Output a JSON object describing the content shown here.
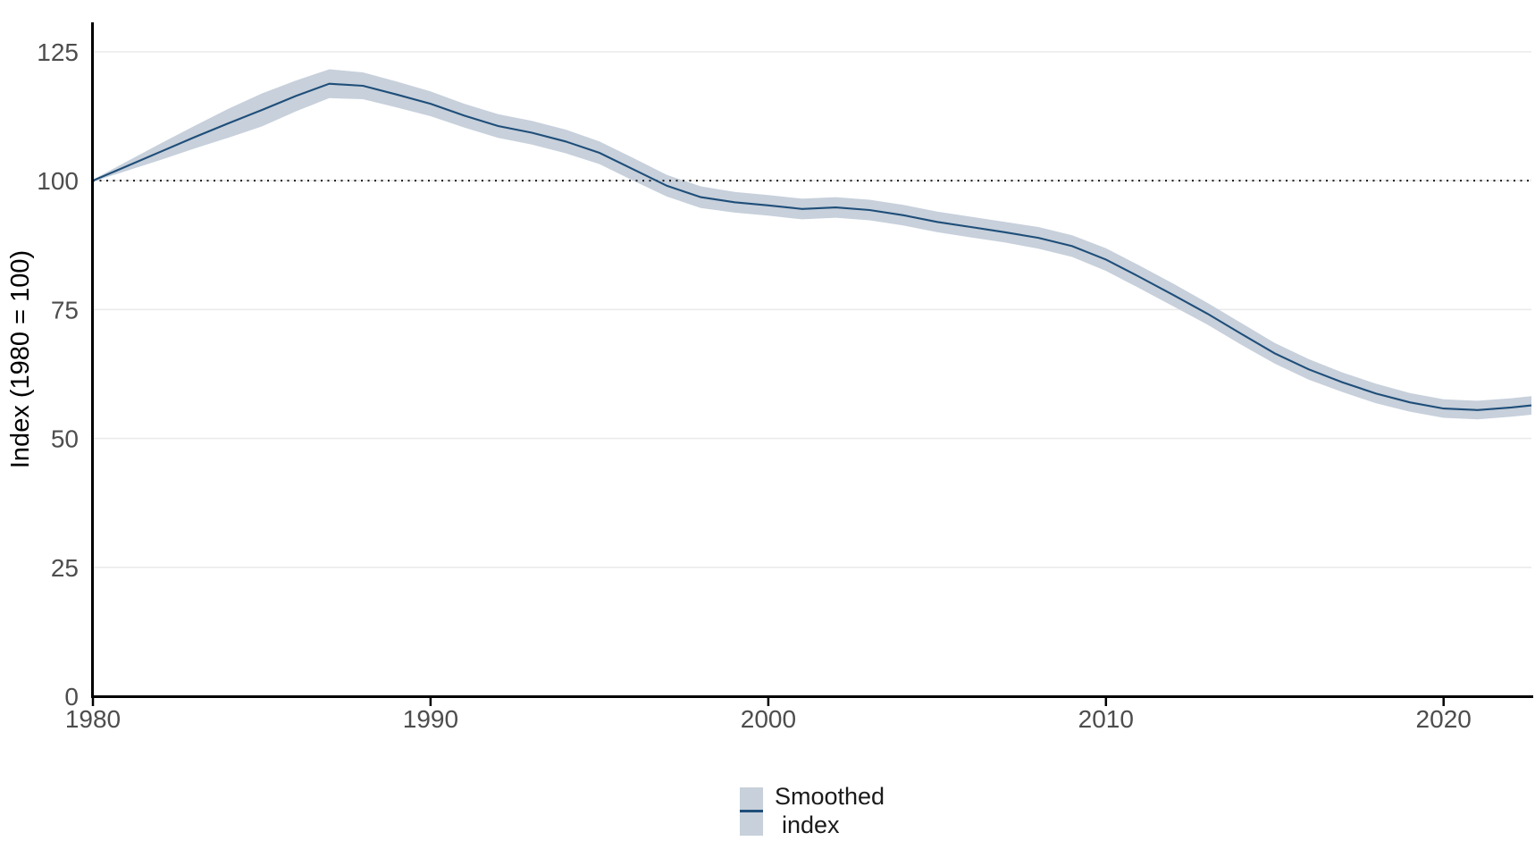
{
  "colors": {
    "ribbon": "#c7d0db",
    "line": "#1f4e79",
    "grid": "#ebebeb",
    "axis": "#000000",
    "tick_text": "#4d4d4d",
    "reference_line": "#1a1a1a",
    "legend_text": "#1a1a1a",
    "background": "#ffffff"
  },
  "chart_data": {
    "type": "line",
    "title": "",
    "xlabel": "",
    "ylabel": "Index (1980 = 100)",
    "x_ticks": [
      1980,
      1990,
      2000,
      2010,
      2020
    ],
    "y_ticks": [
      0,
      25,
      50,
      75,
      100,
      125
    ],
    "xlim": [
      1980,
      2022.6
    ],
    "ylim": [
      0,
      130.7
    ],
    "grid": "horizontal gridlines at y ticks only",
    "reference_line": {
      "y": 100,
      "style": "dotted"
    },
    "legend_position": "bottom center",
    "series": [
      {
        "name": "Smoothed index",
        "x": [
          1980,
          1981,
          1982,
          1983,
          1984,
          1985,
          1986,
          1987,
          1988,
          1989,
          1990,
          1991,
          1992,
          1993,
          1994,
          1995,
          1996,
          1997,
          1998,
          1999,
          2000,
          2001,
          2002,
          2003,
          2004,
          2005,
          2006,
          2007,
          2008,
          2009,
          2010,
          2011,
          2012,
          2013,
          2014,
          2015,
          2016,
          2017,
          2018,
          2019,
          2020,
          2021,
          2022,
          2022.6
        ],
        "y": [
          100.0,
          102.8,
          105.6,
          108.4,
          111.1,
          113.7,
          116.4,
          118.8,
          118.4,
          116.7,
          114.9,
          112.6,
          110.6,
          109.3,
          107.6,
          105.4,
          102.2,
          99.0,
          96.8,
          95.8,
          95.2,
          94.5,
          94.8,
          94.3,
          93.3,
          92.0,
          91.0,
          90.0,
          88.9,
          87.3,
          84.7,
          81.3,
          77.8,
          74.2,
          70.3,
          66.5,
          63.4,
          60.9,
          58.7,
          57.0,
          55.8,
          55.5,
          56.0,
          56.4
        ],
        "ci_halfwidth": [
          0.2,
          0.9,
          1.6,
          2.2,
          2.8,
          3.2,
          3.0,
          2.8,
          2.6,
          2.5,
          2.4,
          2.3,
          2.3,
          2.3,
          2.3,
          2.2,
          2.2,
          2.1,
          2.1,
          2.0,
          2.0,
          2.0,
          2.0,
          2.0,
          2.0,
          2.0,
          2.0,
          2.0,
          2.1,
          2.1,
          2.2,
          2.2,
          2.2,
          2.1,
          2.1,
          2.0,
          2.0,
          1.9,
          1.9,
          1.8,
          1.8,
          1.8,
          1.8,
          1.8
        ]
      }
    ]
  },
  "legend": {
    "label_line1": "Smoothed",
    "label_line2": "index"
  }
}
